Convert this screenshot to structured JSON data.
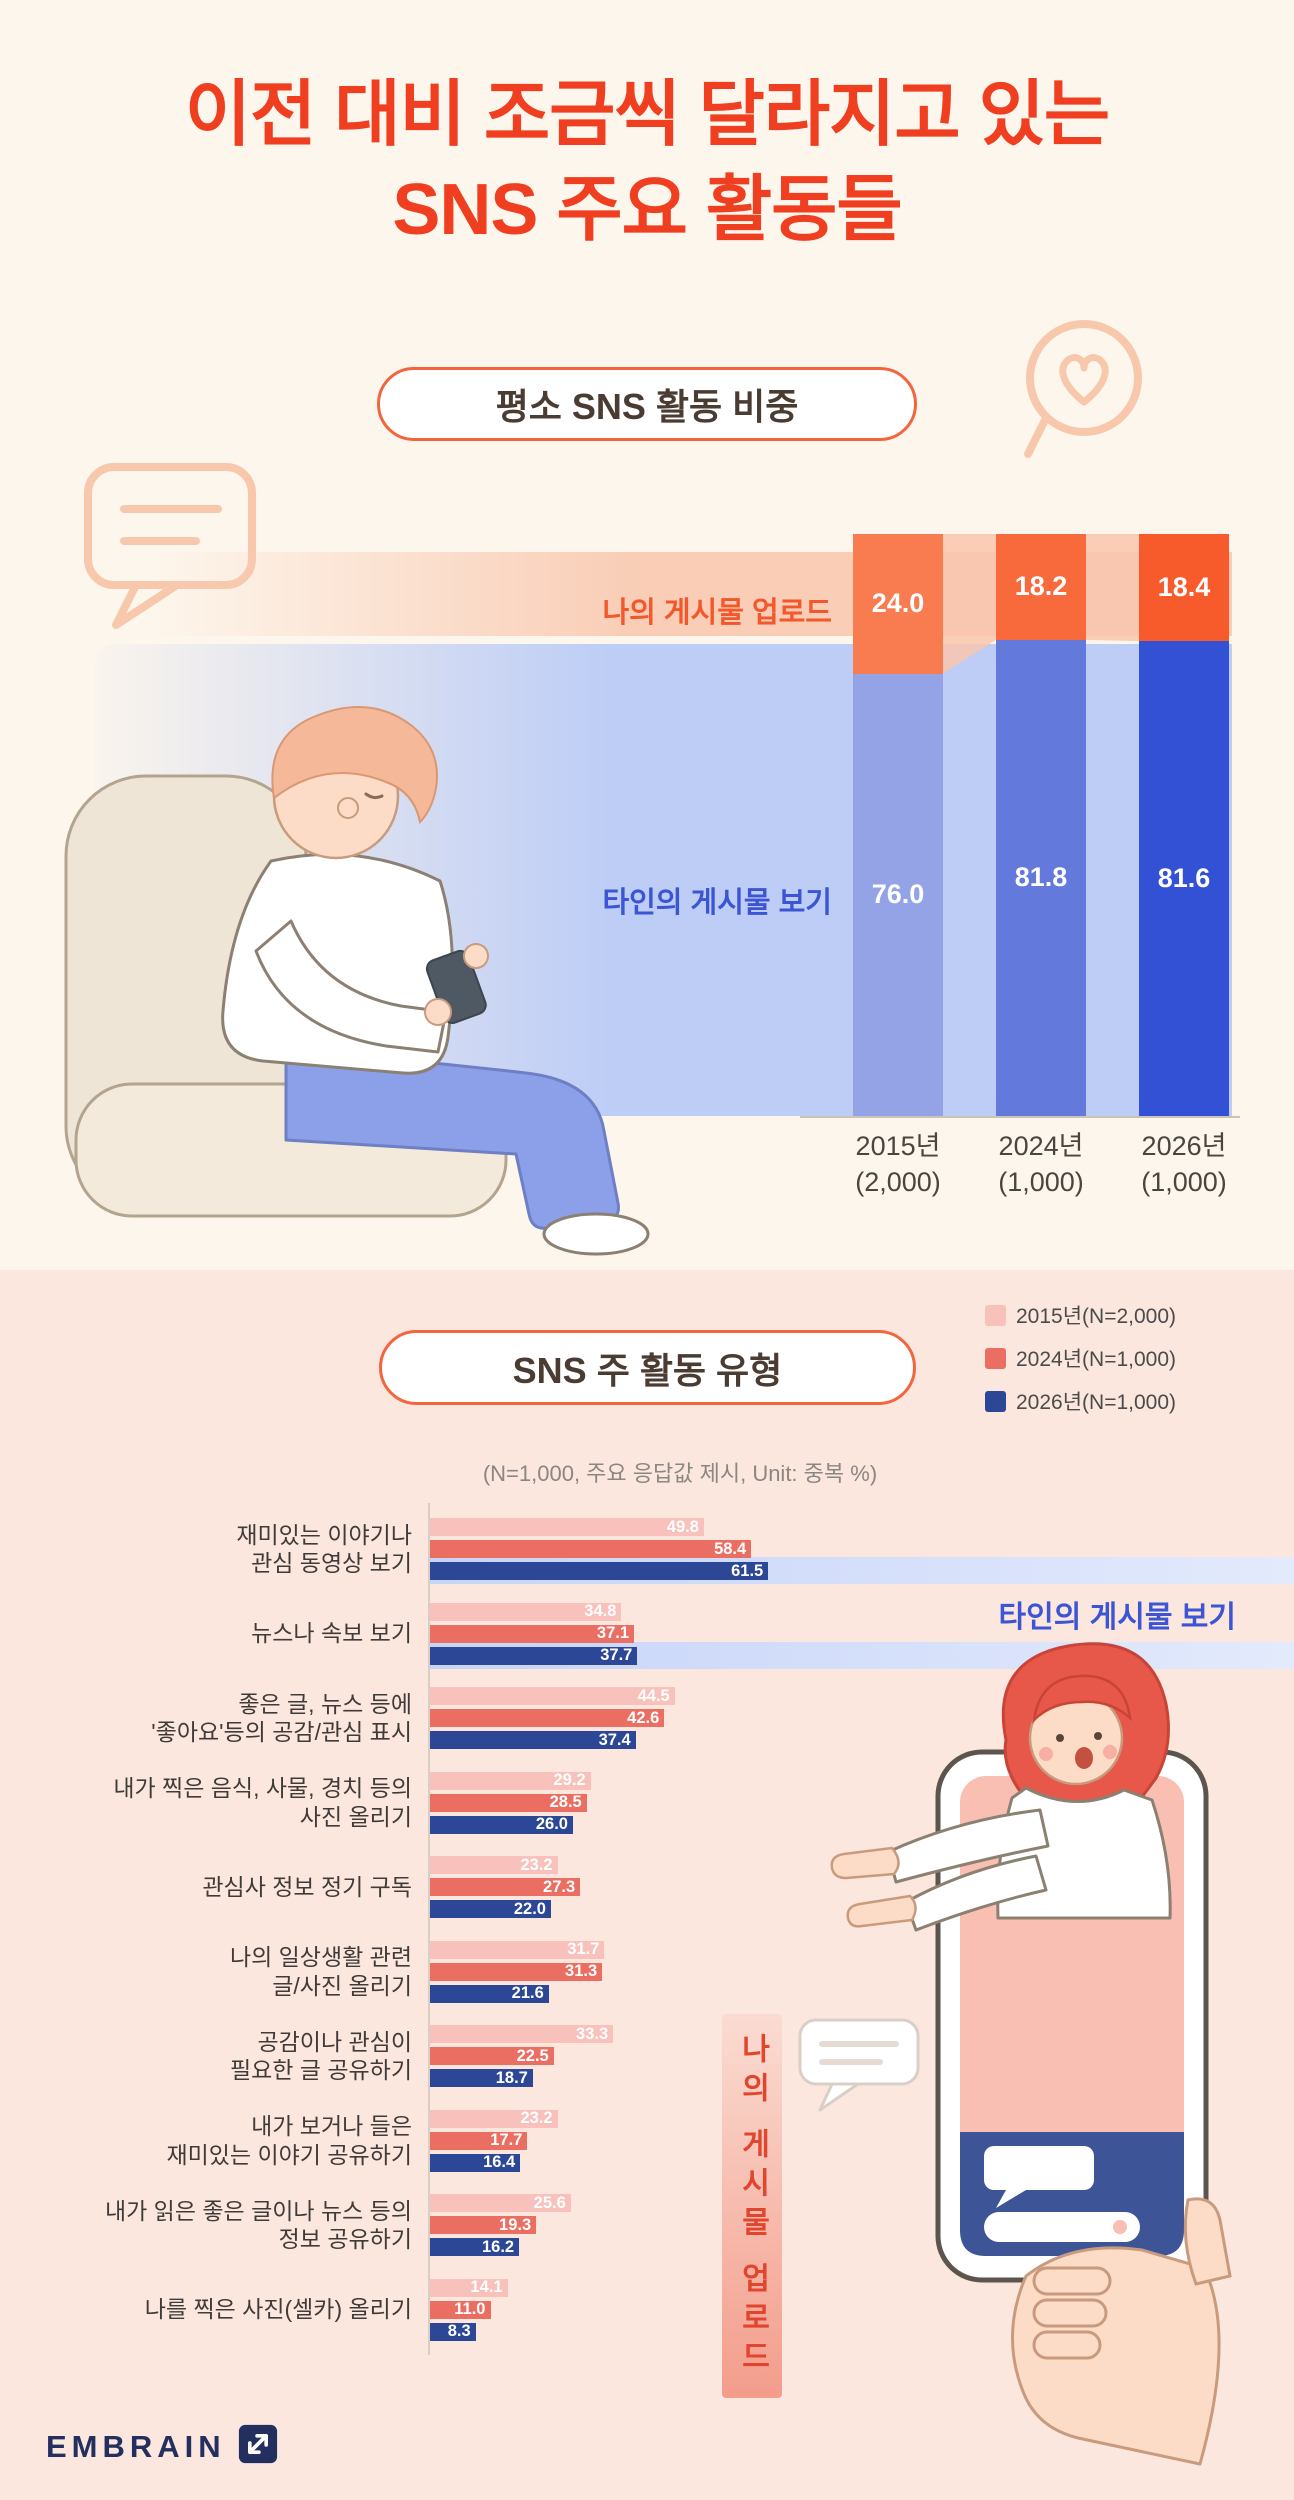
{
  "title": {
    "line1": "이전 대비 조금씩 달라지고 있는",
    "line2": "SNS 주요 활동들",
    "color": "#EF3E20"
  },
  "section1": {
    "badge_label": "평소 SNS 활동 비중"
  },
  "section2": {
    "badge_label": "SNS 주 활동 유형",
    "note": "(N=1,000, 주요 응답값 제시, Unit: 중복 %)",
    "legend": [
      {
        "label": "2015년(N=2,000)",
        "color": "#F8C1BB"
      },
      {
        "label": "2024년(N=1,000)",
        "color": "#EB6E63"
      },
      {
        "label": "2026년(N=1,000)",
        "color": "#2B4795"
      }
    ],
    "band_others_label": "타인의 게시물 보기",
    "band_mine_label": "나의 게시물 업로드"
  },
  "footer": {
    "logo_text": "EMBRAIN"
  },
  "chart_data": [
    {
      "id": "sns-activity-share",
      "type": "bar",
      "stacked": true,
      "title": "평소 SNS 활동 비중",
      "unit": "%",
      "ylim": [
        0,
        100
      ],
      "categories": [
        "2015년\n(2,000)",
        "2024년\n(1,000)",
        "2026년\n(1,000)"
      ],
      "series": [
        {
          "name": "나의 게시물 업로드",
          "values": [
            24.0,
            18.2,
            18.4
          ],
          "colors": [
            "#F97B50",
            "#F8693C",
            "#F75A2B"
          ],
          "label_color": "#F4572C"
        },
        {
          "name": "타인의 게시물 보기",
          "values": [
            76.0,
            81.8,
            81.6
          ],
          "colors": [
            "#93A3E6",
            "#6379DC",
            "#3351D5"
          ],
          "label_color": "#3C55D4"
        }
      ]
    },
    {
      "id": "sns-main-activity-types",
      "type": "bar",
      "orientation": "horizontal",
      "title": "SNS 주 활동 유형",
      "unit": "중복 %",
      "xlim": [
        0,
        65
      ],
      "categories": [
        "재미있는 이야기나\n관심 동영상 보기",
        "뉴스나 속보 보기",
        "좋은 글, 뉴스 등에\n'좋아요'등의 공감/관심 표시",
        "내가 찍은 음식, 사물, 경치 등의\n사진 올리기",
        "관심사 정보 정기 구독",
        "나의 일상생활 관련\n글/사진 올리기",
        "공감이나 관심이\n필요한 글 공유하기",
        "내가 보거나 들은\n재미있는 이야기 공유하기",
        "내가 읽은 좋은 글이나 뉴스 등의\n정보 공유하기",
        "나를 찍은 사진(셀카) 올리기"
      ],
      "series": [
        {
          "name": "2015년(N=2,000)",
          "color": "#F8C1BB",
          "values": [
            49.8,
            34.8,
            44.5,
            29.2,
            23.2,
            31.7,
            33.3,
            23.2,
            25.6,
            14.1
          ]
        },
        {
          "name": "2024년(N=1,000)",
          "color": "#EB6E63",
          "values": [
            58.4,
            37.1,
            42.6,
            28.5,
            27.3,
            31.3,
            22.5,
            17.7,
            19.3,
            11.0
          ]
        },
        {
          "name": "2026년(N=1,000)",
          "color": "#2B4795",
          "values": [
            61.5,
            37.7,
            37.4,
            26.0,
            22.0,
            21.6,
            18.7,
            16.4,
            16.2,
            8.3
          ]
        }
      ],
      "annotations": {
        "others_group": "타인의 게시물 보기",
        "mine_group": "나의 게시물 업로드"
      }
    }
  ]
}
